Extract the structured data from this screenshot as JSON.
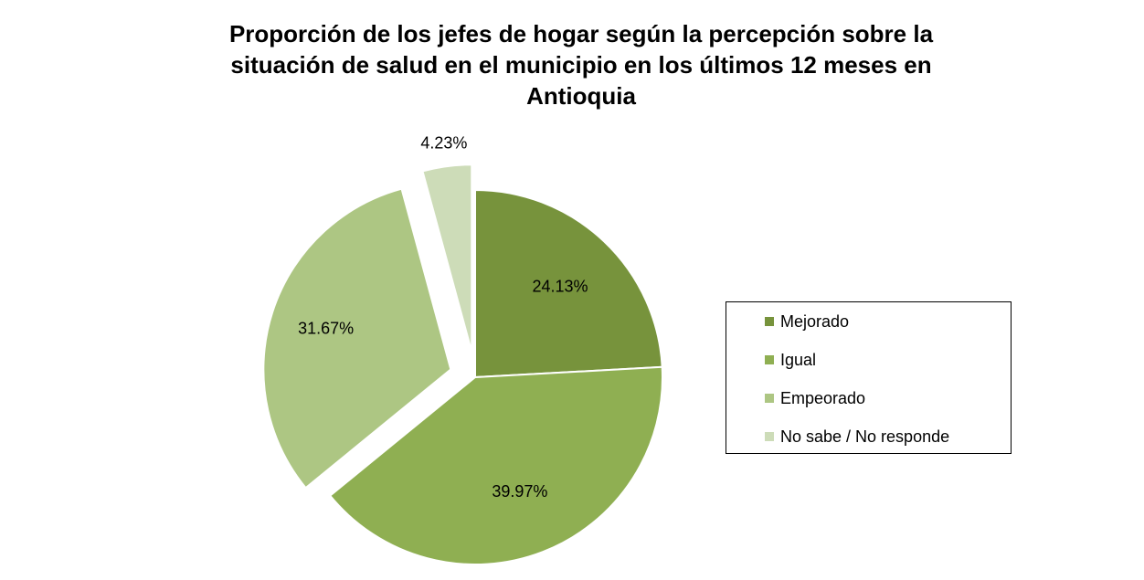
{
  "chart_data": {
    "type": "pie",
    "title": "Proporción de los jefes de hogar según la percepción sobre la situación de salud en el municipio en los últimos 12 meses en Antioquia",
    "title_lines": [
      "Proporción de los jefes de hogar según la percepción sobre la",
      "situación de salud en el municipio en los últimos 12 meses en",
      "Antioquia"
    ],
    "categories": [
      "Mejorado",
      "Igual",
      "Empeorado",
      "No sabe / No responde"
    ],
    "values": [
      24.13,
      39.97,
      31.67,
      4.23
    ],
    "data_labels": [
      "24.13%",
      "39.97%",
      "31.67%",
      "4.23%"
    ],
    "colors": [
      "#77933C",
      "#8FAF52",
      "#ADC683",
      "#CDDCB8"
    ],
    "legend_position": "right",
    "start_angle": "12 o'clock",
    "direction": "clockwise"
  }
}
